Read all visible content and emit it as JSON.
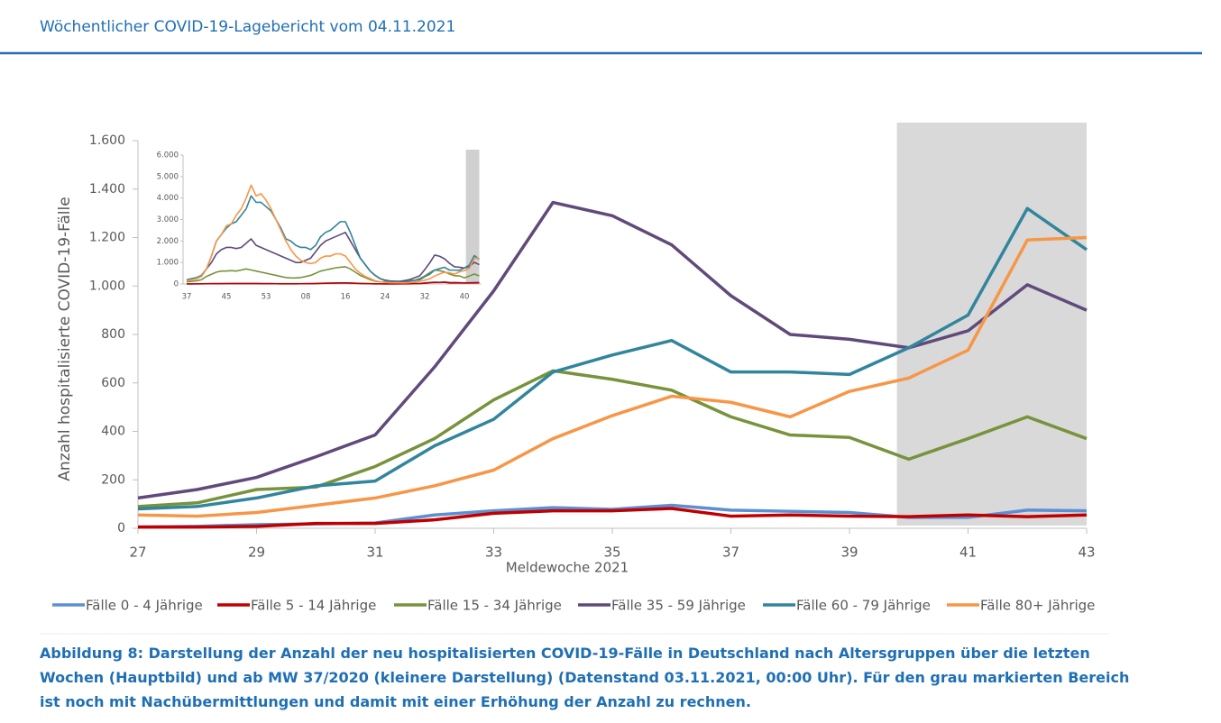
{
  "header": {
    "title": "Wöchentlicher COVID-19-Lagebericht vom 04.11.2021"
  },
  "caption": "Abbildung 8: Darstellung der Anzahl der neu hospitalisierten COVID-19-Fälle in Deutschland nach Altersgruppen über die letzten Wochen (Hauptbild) und ab MW 37/2020 (kleinere Darstellung) (Datenstand 03.11.2021, 00:00 Uhr). Für den grau markierten Bereich ist noch mit Nachübermittlungen und damit mit einer Erhöhung der Anzahl zu rechnen.",
  "chart_data": [
    {
      "type": "line",
      "y_label": "Anzahl hospitalisierte COVID-19-Fälle",
      "x_label": "Meldewoche 2021",
      "x": [
        27,
        28,
        29,
        30,
        31,
        32,
        33,
        34,
        35,
        36,
        37,
        38,
        39,
        40,
        41,
        42,
        43
      ],
      "xlim": [
        27,
        43
      ],
      "xticks": [
        27,
        29,
        31,
        33,
        35,
        37,
        39,
        41,
        43
      ],
      "ylim": [
        0,
        1600
      ],
      "yticks": [
        0,
        200,
        400,
        600,
        800,
        {
          "value": 1000,
          "label": "1.000"
        },
        {
          "value": 1200,
          "label": "1.200"
        },
        {
          "value": 1400,
          "label": "1.400"
        },
        {
          "value": 1600,
          "label": "1.600"
        }
      ],
      "highlight_xlim": [
        39.8,
        43
      ],
      "legend": "bottom",
      "series": [
        {
          "name": "Fälle 0 - 4 Jährige",
          "color": "#5b8fd4",
          "values": [
            5,
            8,
            15,
            18,
            22,
            55,
            72,
            85,
            78,
            95,
            75,
            70,
            65,
            45,
            45,
            75,
            72
          ]
        },
        {
          "name": "Fälle 5 - 14 Jährige",
          "color": "#c00000",
          "values": [
            5,
            5,
            8,
            20,
            20,
            35,
            62,
            72,
            72,
            82,
            50,
            55,
            50,
            48,
            55,
            48,
            55
          ]
        },
        {
          "name": "Fälle 15 - 34 Jährige",
          "color": "#77933c",
          "values": [
            90,
            105,
            160,
            170,
            255,
            370,
            530,
            650,
            615,
            570,
            460,
            385,
            375,
            285,
            370,
            460,
            370
          ]
        },
        {
          "name": "Fälle 35 - 59 Jährige",
          "color": "#604a7b",
          "values": [
            125,
            160,
            210,
            295,
            385,
            665,
            980,
            1345,
            1290,
            1170,
            960,
            800,
            780,
            745,
            815,
            1005,
            900
          ]
        },
        {
          "name": "Fälle 60 - 79 Jährige",
          "color": "#31859c",
          "values": [
            80,
            90,
            125,
            175,
            195,
            340,
            450,
            645,
            715,
            775,
            645,
            645,
            635,
            745,
            880,
            1320,
            1150
          ]
        },
        {
          "name": "Fälle 80+ Jährige",
          "color": "#f79646",
          "values": [
            55,
            50,
            65,
            95,
            125,
            175,
            240,
            370,
            465,
            545,
            520,
            460,
            565,
            620,
            735,
            1190,
            1200
          ]
        }
      ]
    },
    {
      "type": "line",
      "categories": [
        "37",
        null,
        null,
        null,
        null,
        null,
        null,
        null,
        "45",
        null,
        null,
        null,
        null,
        null,
        null,
        null,
        "53",
        null,
        null,
        null,
        null,
        null,
        null,
        null,
        "08",
        null,
        null,
        null,
        null,
        null,
        null,
        null,
        "16",
        null,
        null,
        null,
        null,
        null,
        null,
        null,
        "24",
        null,
        null,
        null,
        null,
        null,
        null,
        null,
        "32",
        null,
        null,
        null,
        null,
        null,
        null,
        null,
        "40",
        null,
        null,
        null
      ],
      "ylim": [
        0,
        6000
      ],
      "yticks": [
        0,
        {
          "value": 1000,
          "label": "1.000"
        },
        {
          "value": 2000,
          "label": "2.000"
        },
        {
          "value": 3000,
          "label": "3.000"
        },
        {
          "value": 4000,
          "label": "4.000"
        },
        {
          "value": 5000,
          "label": "5.000"
        },
        {
          "value": 6000,
          "label": "6.000"
        }
      ],
      "highlight_index": [
        56.3,
        59
      ],
      "series": [
        {
          "color": "#5b8fd4",
          "values": [
            5,
            5,
            8,
            10,
            12,
            15,
            18,
            20,
            20,
            22,
            22,
            22,
            25,
            25,
            25,
            22,
            20,
            18,
            15,
            12,
            12,
            12,
            12,
            12,
            15,
            18,
            22,
            28,
            32,
            35,
            38,
            40,
            40,
            35,
            28,
            20,
            15,
            10,
            8,
            6,
            5,
            5,
            5,
            5,
            8,
            15,
            18,
            22,
            55,
            72,
            85,
            78,
            95,
            75,
            70,
            65,
            45,
            45,
            75,
            72
          ]
        },
        {
          "color": "#c00000",
          "values": [
            3,
            3,
            5,
            8,
            10,
            12,
            15,
            15,
            18,
            18,
            18,
            20,
            20,
            20,
            18,
            15,
            15,
            12,
            10,
            8,
            8,
            8,
            8,
            10,
            12,
            15,
            20,
            28,
            35,
            40,
            45,
            48,
            50,
            45,
            35,
            25,
            18,
            12,
            8,
            5,
            4,
            4,
            4,
            5,
            5,
            8,
            20,
            20,
            35,
            62,
            72,
            72,
            82,
            50,
            55,
            50,
            48,
            55,
            48,
            55
          ]
        },
        {
          "color": "#77933c",
          "values": [
            100,
            120,
            150,
            200,
            350,
            450,
            550,
            600,
            600,
            620,
            600,
            650,
            700,
            650,
            600,
            550,
            500,
            450,
            400,
            350,
            300,
            280,
            280,
            300,
            350,
            400,
            500,
            600,
            650,
            700,
            750,
            780,
            800,
            700,
            550,
            400,
            300,
            200,
            130,
            100,
            90,
            85,
            85,
            90,
            105,
            160,
            170,
            255,
            370,
            530,
            650,
            615,
            570,
            460,
            385,
            375,
            285,
            370,
            460,
            370
          ]
        },
        {
          "color": "#604a7b",
          "values": [
            150,
            200,
            250,
            400,
            700,
            1000,
            1400,
            1600,
            1700,
            1700,
            1650,
            1700,
            1900,
            2100,
            1800,
            1700,
            1600,
            1500,
            1400,
            1300,
            1200,
            1100,
            1000,
            1000,
            1100,
            1200,
            1500,
            1800,
            2000,
            2100,
            2200,
            2300,
            2400,
            2000,
            1600,
            1200,
            900,
            600,
            400,
            250,
            180,
            140,
            130,
            125,
            160,
            210,
            295,
            385,
            665,
            980,
            1345,
            1290,
            1170,
            960,
            800,
            780,
            745,
            815,
            1005,
            900
          ]
        },
        {
          "color": "#31859c",
          "values": [
            200,
            250,
            300,
            400,
            700,
            1300,
            2000,
            2300,
            2600,
            2800,
            2900,
            3200,
            3500,
            4100,
            3800,
            3800,
            3600,
            3400,
            3000,
            2600,
            2100,
            2000,
            1800,
            1700,
            1700,
            1600,
            1800,
            2200,
            2400,
            2500,
            2700,
            2900,
            2900,
            2400,
            1800,
            1200,
            900,
            600,
            400,
            250,
            150,
            100,
            100,
            80,
            90,
            125,
            175,
            195,
            340,
            450,
            645,
            715,
            775,
            645,
            645,
            635,
            745,
            880,
            1320,
            1150
          ]
        },
        {
          "color": "#f79646",
          "values": [
            150,
            200,
            250,
            350,
            700,
            1300,
            2000,
            2300,
            2700,
            2800,
            3200,
            3500,
            4000,
            4600,
            4100,
            4200,
            3900,
            3500,
            3000,
            2500,
            2000,
            1600,
            1300,
            1100,
            1000,
            950,
            1000,
            1200,
            1300,
            1300,
            1400,
            1400,
            1300,
            1000,
            700,
            500,
            350,
            250,
            150,
            100,
            80,
            60,
            55,
            55,
            50,
            65,
            95,
            125,
            175,
            240,
            370,
            465,
            545,
            520,
            460,
            565,
            620,
            735,
            1190,
            1200
          ]
        }
      ]
    }
  ]
}
